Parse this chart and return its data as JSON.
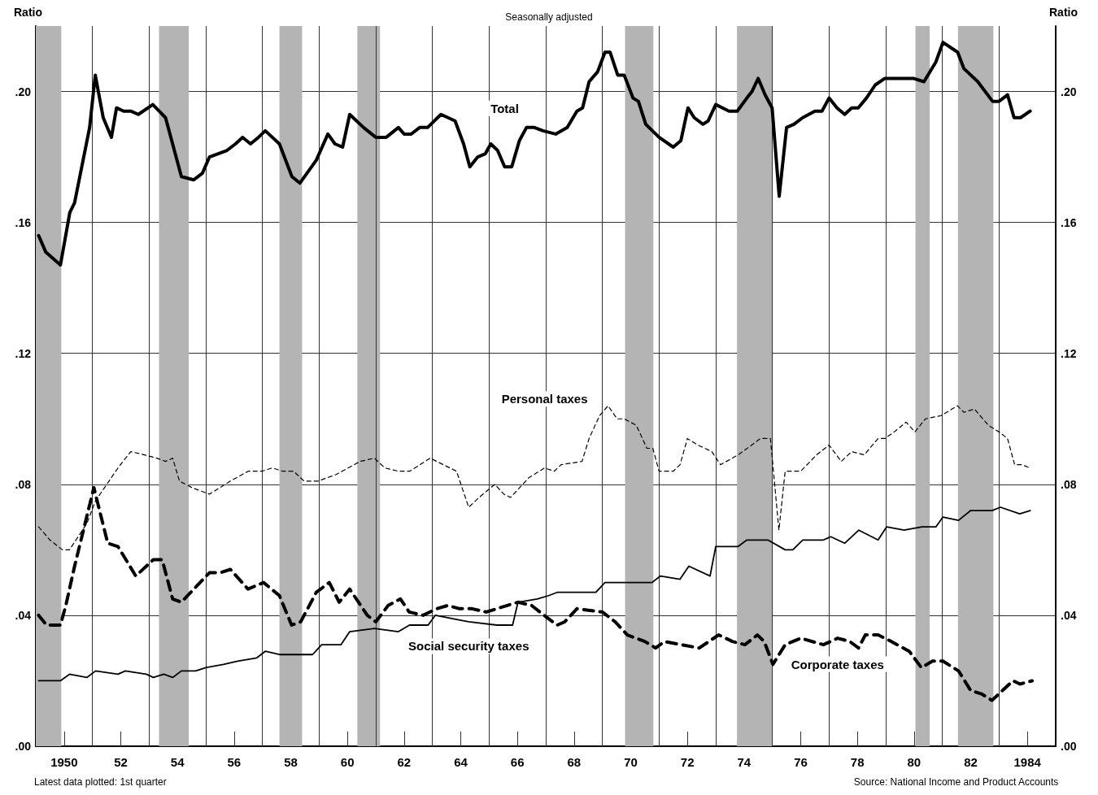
{
  "chart_data": {
    "type": "line",
    "title": "Seasonally adjusted",
    "ylabel": "Ratio",
    "y2label": "Ratio",
    "xlim": [
      1949,
      1985
    ],
    "ylim": [
      0,
      0.22
    ],
    "y2lim": [
      0,
      0.22
    ],
    "xticks": [
      {
        "value": 1950,
        "label": "1950"
      },
      {
        "value": 1951,
        "label": null
      },
      {
        "value": 1952,
        "label": "52"
      },
      {
        "value": 1953,
        "label": null
      },
      {
        "value": 1954,
        "label": "54"
      },
      {
        "value": 1955,
        "label": null
      },
      {
        "value": 1956,
        "label": "56"
      },
      {
        "value": 1957,
        "label": null
      },
      {
        "value": 1958,
        "label": "58"
      },
      {
        "value": 1959,
        "label": null
      },
      {
        "value": 1960,
        "label": "60"
      },
      {
        "value": 1961,
        "label": null
      },
      {
        "value": 1962,
        "label": "62"
      },
      {
        "value": 1963,
        "label": null
      },
      {
        "value": 1964,
        "label": "64"
      },
      {
        "value": 1965,
        "label": null
      },
      {
        "value": 1966,
        "label": "66"
      },
      {
        "value": 1967,
        "label": null
      },
      {
        "value": 1968,
        "label": "68"
      },
      {
        "value": 1969,
        "label": null
      },
      {
        "value": 1970,
        "label": "70"
      },
      {
        "value": 1971,
        "label": null
      },
      {
        "value": 1972,
        "label": "72"
      },
      {
        "value": 1973,
        "label": null
      },
      {
        "value": 1974,
        "label": "74"
      },
      {
        "value": 1975,
        "label": null
      },
      {
        "value": 1976,
        "label": "76"
      },
      {
        "value": 1977,
        "label": null
      },
      {
        "value": 1978,
        "label": "78"
      },
      {
        "value": 1979,
        "label": null
      },
      {
        "value": 1980,
        "label": "80"
      },
      {
        "value": 1981,
        "label": null
      },
      {
        "value": 1982,
        "label": "82"
      },
      {
        "value": 1983,
        "label": null
      },
      {
        "value": 1984,
        "label": "1984"
      }
    ],
    "yticks": [
      {
        "value": 0,
        "label": ".00"
      },
      {
        "value": 0.04,
        "label": ".04"
      },
      {
        "value": 0.08,
        "label": ".08"
      },
      {
        "value": 0.12,
        "label": ".12"
      },
      {
        "value": 0.16,
        "label": ".16"
      },
      {
        "value": 0.2,
        "label": ".20"
      }
    ],
    "y2ticks": [
      {
        "value": 0,
        "label": ".00"
      },
      {
        "value": 0.04,
        "label": ".04"
      },
      {
        "value": 0.08,
        "label": ".08"
      },
      {
        "value": 0.12,
        "label": ".12"
      },
      {
        "value": 0.16,
        "label": ".16"
      },
      {
        "value": 0.2,
        "label": ".20"
      }
    ],
    "grid": true,
    "marker": "none",
    "series": [
      {
        "name": "Total",
        "color": "#000000",
        "line_style": "solid",
        "x": [
          1949.1,
          1949.35,
          1949.87,
          1950.2,
          1950.37,
          1950.9,
          1951.1,
          1951.38,
          1951.67,
          1951.85,
          1952.1,
          1952.35,
          1952.62,
          1953.13,
          1953.58,
          1954.14,
          1954.57,
          1954.88,
          1955.13,
          1955.75,
          1956.05,
          1956.3,
          1956.58,
          1956.86,
          1957.1,
          1957.6,
          1958.04,
          1958.32,
          1958.9,
          1959.31,
          1959.56,
          1959.83,
          1960.08,
          1960.57,
          1961.0,
          1961.37,
          1961.8,
          1962.0,
          1962.25,
          1962.55,
          1962.83,
          1963.3,
          1963.8,
          1964.1,
          1964.32,
          1964.6,
          1964.87,
          1965.06,
          1965.3,
          1965.55,
          1965.8,
          1966.07,
          1966.32,
          1966.6,
          1966.9,
          1967.35,
          1967.76,
          1968.1,
          1968.3,
          1968.53,
          1968.83,
          1969.09,
          1969.27,
          1969.54,
          1969.77,
          1970.08,
          1970.27,
          1970.53,
          1971.0,
          1971.5,
          1971.77,
          1972.02,
          1972.24,
          1972.55,
          1972.73,
          1973.0,
          1973.47,
          1973.76,
          1974.1,
          1974.28,
          1974.5,
          1974.74,
          1974.99,
          1975.24,
          1975.5,
          1975.76,
          1976.07,
          1976.5,
          1976.75,
          1977.0,
          1977.28,
          1977.55,
          1977.8,
          1978.03,
          1978.32,
          1978.63,
          1978.97,
          1979.22,
          1979.56,
          1979.97,
          1980.35,
          1980.77,
          1981.02,
          1981.54,
          1981.76,
          1982.25,
          1982.77,
          1983.0,
          1983.3,
          1983.53,
          1983.76,
          1984.1
        ],
        "values": [
          0.156,
          0.151,
          0.147,
          0.163,
          0.166,
          0.189,
          0.205,
          0.192,
          0.186,
          0.195,
          0.194,
          0.194,
          0.193,
          0.196,
          0.192,
          0.174,
          0.173,
          0.175,
          0.18,
          0.182,
          0.184,
          0.186,
          0.184,
          0.186,
          0.188,
          0.184,
          0.174,
          0.172,
          0.179,
          0.187,
          0.184,
          0.183,
          0.193,
          0.189,
          0.186,
          0.186,
          0.189,
          0.187,
          0.187,
          0.189,
          0.189,
          0.193,
          0.191,
          0.184,
          0.177,
          0.18,
          0.181,
          0.184,
          0.182,
          0.177,
          0.177,
          0.185,
          0.189,
          0.189,
          0.188,
          0.187,
          0.189,
          0.194,
          0.195,
          0.203,
          0.206,
          0.212,
          0.212,
          0.205,
          0.205,
          0.198,
          0.197,
          0.19,
          0.186,
          0.183,
          0.185,
          0.195,
          0.192,
          0.19,
          0.191,
          0.196,
          0.194,
          0.194,
          0.198,
          0.2,
          0.204,
          0.199,
          0.195,
          0.168,
          0.189,
          0.19,
          0.192,
          0.194,
          0.194,
          0.198,
          0.195,
          0.193,
          0.195,
          0.195,
          0.198,
          0.202,
          0.204,
          0.204,
          0.204,
          0.204,
          0.203,
          0.209,
          0.215,
          0.212,
          0.207,
          0.203,
          0.197,
          0.197,
          0.199,
          0.192,
          0.192,
          0.194
        ]
      },
      {
        "name": "Personal taxes",
        "color": "#000000",
        "line_style": "dashed",
        "x": [
          1949.1,
          1949.5,
          1949.94,
          1950.19,
          1950.8,
          1951.11,
          1951.9,
          1952.35,
          1952.84,
          1953.27,
          1953.58,
          1953.83,
          1954.07,
          1954.51,
          1955.13,
          1955.87,
          1956.5,
          1956.98,
          1957.35,
          1957.72,
          1958.1,
          1958.47,
          1958.96,
          1959.6,
          1960.45,
          1960.95,
          1961.32,
          1961.8,
          1962.2,
          1962.92,
          1963.85,
          1964.28,
          1964.65,
          1965.2,
          1965.52,
          1965.76,
          1966.4,
          1966.96,
          1967.3,
          1967.54,
          1968.28,
          1968.53,
          1968.9,
          1969.2,
          1969.52,
          1969.77,
          1970.2,
          1970.57,
          1970.78,
          1971.0,
          1971.5,
          1971.74,
          1972.0,
          1972.37,
          1972.86,
          1973.17,
          1973.79,
          1974.27,
          1974.58,
          1974.93,
          1975.23,
          1975.45,
          1975.7,
          1976.0,
          1976.56,
          1977.0,
          1977.43,
          1977.8,
          1978.24,
          1978.73,
          1978.97,
          1979.3,
          1979.72,
          1980.03,
          1980.4,
          1980.96,
          1981.53,
          1981.76,
          1982.13,
          1982.63,
          1983.0,
          1983.3,
          1983.55,
          1983.8,
          1984.1
        ],
        "values": [
          0.067,
          0.063,
          0.06,
          0.06,
          0.068,
          0.075,
          0.085,
          0.09,
          0.089,
          0.088,
          0.087,
          0.088,
          0.081,
          0.079,
          0.077,
          0.081,
          0.084,
          0.084,
          0.085,
          0.084,
          0.084,
          0.081,
          0.081,
          0.083,
          0.087,
          0.088,
          0.085,
          0.084,
          0.084,
          0.088,
          0.084,
          0.073,
          0.076,
          0.08,
          0.077,
          0.076,
          0.082,
          0.085,
          0.084,
          0.086,
          0.087,
          0.094,
          0.101,
          0.104,
          0.1,
          0.1,
          0.098,
          0.091,
          0.091,
          0.084,
          0.084,
          0.086,
          0.094,
          0.092,
          0.09,
          0.086,
          0.089,
          0.092,
          0.094,
          0.094,
          0.066,
          0.084,
          0.084,
          0.084,
          0.089,
          0.092,
          0.087,
          0.09,
          0.089,
          0.094,
          0.094,
          0.096,
          0.099,
          0.096,
          0.1,
          0.101,
          0.104,
          0.102,
          0.103,
          0.098,
          0.096,
          0.094,
          0.086,
          0.086,
          0.085
        ]
      },
      {
        "name": "Social security taxes",
        "color": "#000000",
        "line_style": "solid",
        "x": [
          1949.1,
          1949.87,
          1950.19,
          1950.8,
          1951.11,
          1951.9,
          1952.16,
          1952.9,
          1953.15,
          1953.52,
          1953.83,
          1954.14,
          1954.64,
          1955.0,
          1955.62,
          1956.12,
          1956.8,
          1957.1,
          1957.6,
          1958.34,
          1958.77,
          1959.09,
          1959.77,
          1960.08,
          1960.95,
          1961.8,
          1962.19,
          1962.85,
          1963.1,
          1964.28,
          1965.28,
          1965.83,
          1966.02,
          1966.7,
          1967.1,
          1967.4,
          1968.16,
          1968.77,
          1969.09,
          1969.88,
          1970.75,
          1971.05,
          1971.74,
          1972.05,
          1972.8,
          1973.0,
          1973.79,
          1974.1,
          1974.84,
          1975.45,
          1975.72,
          1976.07,
          1976.8,
          1977.06,
          1977.55,
          1978.05,
          1978.73,
          1979.03,
          1979.65,
          1980.28,
          1980.77,
          1981.02,
          1981.57,
          1982.0,
          1982.75,
          1983.05,
          1983.73,
          1984.1
        ],
        "values": [
          0.02,
          0.02,
          0.022,
          0.021,
          0.023,
          0.022,
          0.023,
          0.022,
          0.021,
          0.022,
          0.021,
          0.023,
          0.023,
          0.024,
          0.025,
          0.026,
          0.027,
          0.029,
          0.028,
          0.028,
          0.028,
          0.031,
          0.031,
          0.035,
          0.036,
          0.035,
          0.037,
          0.037,
          0.04,
          0.038,
          0.037,
          0.037,
          0.044,
          0.045,
          0.046,
          0.047,
          0.047,
          0.047,
          0.05,
          0.05,
          0.05,
          0.052,
          0.051,
          0.055,
          0.052,
          0.061,
          0.061,
          0.063,
          0.063,
          0.06,
          0.06,
          0.063,
          0.063,
          0.064,
          0.062,
          0.066,
          0.063,
          0.067,
          0.066,
          0.067,
          0.067,
          0.07,
          0.069,
          0.072,
          0.072,
          0.073,
          0.071,
          0.072
        ]
      },
      {
        "name": "Corporate taxes",
        "color": "#000000",
        "line_style": "dashed",
        "x": [
          1949.1,
          1949.38,
          1949.87,
          1950.06,
          1950.37,
          1951.05,
          1951.54,
          1951.9,
          1952.53,
          1953.15,
          1953.46,
          1953.83,
          1954.14,
          1955.13,
          1955.5,
          1955.87,
          1956.49,
          1957.04,
          1957.6,
          1958.03,
          1958.35,
          1958.9,
          1959.36,
          1959.71,
          1960.08,
          1960.7,
          1961.0,
          1961.44,
          1961.87,
          1962.18,
          1962.67,
          1963.16,
          1963.54,
          1963.96,
          1964.4,
          1964.9,
          1965.27,
          1965.64,
          1966.02,
          1966.5,
          1966.94,
          1967.4,
          1967.67,
          1968.1,
          1969.0,
          1969.45,
          1969.88,
          1970.5,
          1970.88,
          1971.19,
          1971.8,
          1972.42,
          1973.1,
          1973.59,
          1974.03,
          1974.47,
          1974.71,
          1975.02,
          1975.45,
          1976.0,
          1976.8,
          1977.3,
          1977.73,
          1978.04,
          1978.28,
          1978.73,
          1979.2,
          1979.83,
          1980.26,
          1980.65,
          1981.02,
          1981.57,
          1982.0,
          1982.38,
          1982.75,
          1983.12,
          1983.49,
          1983.74,
          1984.17
        ],
        "values": [
          0.04,
          0.037,
          0.037,
          0.043,
          0.055,
          0.079,
          0.062,
          0.061,
          0.052,
          0.057,
          0.057,
          0.045,
          0.044,
          0.053,
          0.053,
          0.054,
          0.048,
          0.05,
          0.046,
          0.037,
          0.038,
          0.047,
          0.05,
          0.044,
          0.048,
          0.04,
          0.038,
          0.043,
          0.045,
          0.041,
          0.04,
          0.042,
          0.043,
          0.042,
          0.042,
          0.041,
          0.042,
          0.043,
          0.044,
          0.043,
          0.04,
          0.037,
          0.038,
          0.042,
          0.041,
          0.038,
          0.034,
          0.032,
          0.03,
          0.032,
          0.031,
          0.03,
          0.034,
          0.032,
          0.031,
          0.034,
          0.032,
          0.025,
          0.031,
          0.033,
          0.031,
          0.033,
          0.032,
          0.03,
          0.034,
          0.034,
          0.032,
          0.029,
          0.024,
          0.026,
          0.026,
          0.023,
          0.017,
          0.016,
          0.014,
          0.017,
          0.02,
          0.019,
          0.02
        ]
      }
    ],
    "bands": [
      {
        "axis": "x",
        "from": 1949,
        "to": 1949.9,
        "color": "#b4b4b4"
      },
      {
        "axis": "x",
        "from": 1953.35,
        "to": 1954.4,
        "color": "#b4b4b4"
      },
      {
        "axis": "x",
        "from": 1957.6,
        "to": 1958.4,
        "color": "#b4b4b4"
      },
      {
        "axis": "x",
        "from": 1960.35,
        "to": 1961.15,
        "color": "#b4b4b4"
      },
      {
        "axis": "x",
        "from": 1969.8,
        "to": 1970.8,
        "color": "#b4b4b4"
      },
      {
        "axis": "x",
        "from": 1973.75,
        "to": 1975,
        "color": "#b4b4b4"
      },
      {
        "axis": "x",
        "from": 1980.05,
        "to": 1980.55,
        "color": "#b4b4b4"
      },
      {
        "axis": "x",
        "from": 1981.55,
        "to": 1982.8,
        "color": "#b4b4b4"
      }
    ],
    "annotations": [
      "Latest data plotted: 1st quarter",
      "Source: National Income and Product Accounts"
    ]
  }
}
